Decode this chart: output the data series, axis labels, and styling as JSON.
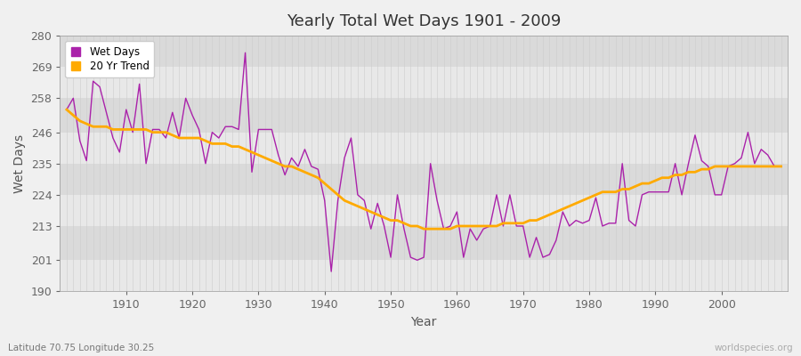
{
  "title": "Yearly Total Wet Days 1901 - 2009",
  "xlabel": "Year",
  "ylabel": "Wet Days",
  "subtitle": "Latitude 70.75 Longitude 30.25",
  "watermark": "worldspecies.org",
  "legend_labels": [
    "Wet Days",
    "20 Yr Trend"
  ],
  "wet_days_color": "#aa22aa",
  "trend_color": "#ffaa00",
  "background_color": "#f0f0f0",
  "plot_bg_color": "#f0f0f0",
  "grid_color": "#ffffff",
  "ylim": [
    190,
    280
  ],
  "yticks": [
    190,
    201,
    213,
    224,
    235,
    246,
    258,
    269,
    280
  ],
  "years": [
    1901,
    1902,
    1903,
    1904,
    1905,
    1906,
    1907,
    1908,
    1909,
    1910,
    1911,
    1912,
    1913,
    1914,
    1915,
    1916,
    1917,
    1918,
    1919,
    1920,
    1921,
    1922,
    1923,
    1924,
    1925,
    1926,
    1927,
    1928,
    1929,
    1930,
    1931,
    1932,
    1933,
    1934,
    1935,
    1936,
    1937,
    1938,
    1939,
    1940,
    1941,
    1942,
    1943,
    1944,
    1945,
    1946,
    1947,
    1948,
    1949,
    1950,
    1951,
    1952,
    1953,
    1954,
    1955,
    1956,
    1957,
    1958,
    1959,
    1960,
    1961,
    1962,
    1963,
    1964,
    1965,
    1966,
    1967,
    1968,
    1969,
    1970,
    1971,
    1972,
    1973,
    1974,
    1975,
    1976,
    1977,
    1978,
    1979,
    1980,
    1981,
    1982,
    1983,
    1984,
    1985,
    1986,
    1987,
    1988,
    1989,
    1990,
    1991,
    1992,
    1993,
    1994,
    1995,
    1996,
    1997,
    1998,
    1999,
    2000,
    2001,
    2002,
    2003,
    2004,
    2005,
    2006,
    2007,
    2008,
    2009
  ],
  "wet_days": [
    254,
    258,
    243,
    236,
    264,
    262,
    253,
    244,
    239,
    254,
    246,
    263,
    235,
    247,
    247,
    244,
    253,
    244,
    258,
    252,
    247,
    235,
    246,
    244,
    248,
    248,
    247,
    274,
    232,
    247,
    247,
    247,
    238,
    231,
    237,
    234,
    240,
    234,
    233,
    222,
    197,
    222,
    237,
    244,
    224,
    222,
    212,
    221,
    213,
    202,
    224,
    212,
    202,
    201,
    202,
    235,
    222,
    212,
    213,
    218,
    202,
    212,
    208,
    212,
    213,
    224,
    213,
    224,
    213,
    213,
    202,
    209,
    202,
    203,
    208,
    218,
    213,
    215,
    214,
    215,
    223,
    213,
    214,
    214,
    235,
    215,
    213,
    224,
    225,
    225,
    225,
    225,
    235,
    224,
    235,
    245,
    236,
    234,
    224,
    224,
    234,
    235,
    237,
    246,
    235,
    240,
    238,
    234,
    234
  ],
  "trend": [
    254,
    252,
    250,
    249,
    248,
    248,
    248,
    247,
    247,
    247,
    247,
    247,
    247,
    246,
    246,
    246,
    245,
    244,
    244,
    244,
    244,
    243,
    242,
    242,
    242,
    241,
    241,
    240,
    239,
    238,
    237,
    236,
    235,
    234,
    234,
    233,
    232,
    231,
    230,
    228,
    226,
    224,
    222,
    221,
    220,
    219,
    218,
    217,
    216,
    215,
    215,
    214,
    213,
    213,
    212,
    212,
    212,
    212,
    212,
    213,
    213,
    213,
    213,
    213,
    213,
    213,
    214,
    214,
    214,
    214,
    215,
    215,
    216,
    217,
    218,
    219,
    220,
    221,
    222,
    223,
    224,
    225,
    225,
    225,
    226,
    226,
    227,
    228,
    228,
    229,
    230,
    230,
    231,
    231,
    232,
    232,
    233,
    233,
    234,
    234,
    234,
    234,
    234,
    234,
    234,
    234,
    234,
    234,
    234
  ]
}
